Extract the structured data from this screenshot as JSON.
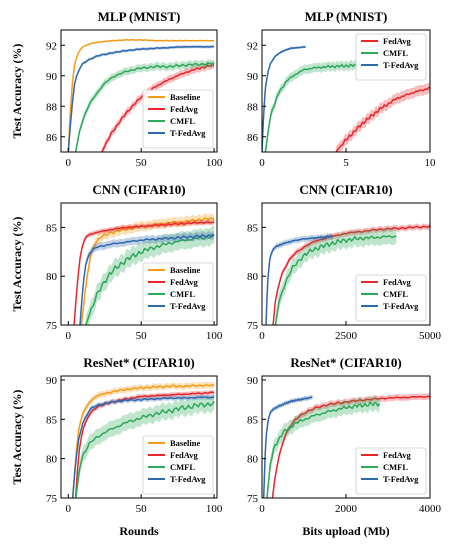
{
  "chart_data": [
    {
      "type": "line",
      "title": "MLP (MNIST)",
      "xlabel": "",
      "ylabel": "Test Accuracy (%)",
      "xlim": [
        -5,
        102
      ],
      "ylim": [
        85,
        93
      ],
      "xticks": [
        0,
        50,
        100
      ],
      "yticks": [
        86,
        88,
        90,
        92
      ],
      "legend": "bottom-right",
      "series": [
        {
          "name": "Baseline",
          "color": "#f39c1a",
          "band": 0.05,
          "x": [
            0,
            2,
            4,
            6,
            8,
            10,
            15,
            20,
            30,
            40,
            50,
            60,
            70,
            80,
            90,
            100
          ],
          "y": [
            85,
            88.8,
            90.6,
            91.3,
            91.7,
            91.9,
            92.1,
            92.2,
            92.3,
            92.35,
            92.35,
            92.3,
            92.3,
            92.3,
            92.3,
            92.3
          ]
        },
        {
          "name": "FedAvg",
          "color": "#e8262a",
          "band": 0.25,
          "x": [
            23,
            30,
            40,
            50,
            60,
            70,
            80,
            90,
            100
          ],
          "y": [
            85,
            86.3,
            87.6,
            88.6,
            89.3,
            89.8,
            90.2,
            90.5,
            90.7
          ]
        },
        {
          "name": "CMFL",
          "color": "#2da85a",
          "band": 0.25,
          "x": [
            5,
            8,
            12,
            16,
            20,
            25,
            30,
            40,
            50,
            60,
            70,
            80,
            90,
            100
          ],
          "y": [
            85,
            86.5,
            87.6,
            88.4,
            88.9,
            89.5,
            89.9,
            90.3,
            90.5,
            90.6,
            90.6,
            90.7,
            90.75,
            90.8
          ]
        },
        {
          "name": "T-FedAvg",
          "color": "#2e68ad",
          "band": 0.1,
          "x": [
            0,
            2,
            4,
            6,
            8,
            10,
            15,
            20,
            30,
            40,
            50,
            60,
            70,
            80,
            90,
            100
          ],
          "y": [
            85,
            87.5,
            89.3,
            90.1,
            90.5,
            90.8,
            91.1,
            91.3,
            91.5,
            91.65,
            91.75,
            91.8,
            91.85,
            91.9,
            91.9,
            91.9
          ]
        }
      ]
    },
    {
      "type": "line",
      "title": "MLP (MNIST)",
      "xlabel": "",
      "ylabel": "",
      "xlim": [
        0,
        10
      ],
      "ylim": [
        85,
        93
      ],
      "xticks": [
        0,
        5,
        10
      ],
      "yticks": [
        86,
        88,
        90,
        92
      ],
      "legend": "top-right",
      "series": [
        {
          "name": "FedAvg",
          "color": "#e8262a",
          "band": 0.35,
          "x": [
            4.4,
            5,
            6,
            7,
            8,
            9,
            10
          ],
          "y": [
            85,
            85.8,
            86.9,
            87.8,
            88.5,
            88.9,
            89.2
          ]
        },
        {
          "name": "CMFL",
          "color": "#2da85a",
          "band": 0.3,
          "x": [
            0.2,
            0.5,
            1,
            1.5,
            2,
            2.5,
            3,
            4,
            5,
            6
          ],
          "y": [
            85,
            87.4,
            88.9,
            89.7,
            90.1,
            90.4,
            90.5,
            90.6,
            90.65,
            90.7
          ]
        },
        {
          "name": "T-FedAvg",
          "color": "#2e68ad",
          "band": 0.08,
          "x": [
            0,
            0.1,
            0.2,
            0.35,
            0.5,
            0.8,
            1.2,
            1.7,
            2.2,
            2.6
          ],
          "y": [
            85,
            87.5,
            89.2,
            90.2,
            90.8,
            91.3,
            91.6,
            91.8,
            91.85,
            91.9
          ]
        }
      ]
    },
    {
      "type": "line",
      "title": "CNN (CIFAR10)",
      "xlabel": "",
      "ylabel": "Test Accuracy (%)",
      "xlim": [
        -5,
        102
      ],
      "ylim": [
        75,
        87.5
      ],
      "xticks": [
        0,
        50,
        100
      ],
      "yticks": [
        75,
        80,
        85
      ],
      "legend": "bottom-right",
      "series": [
        {
          "name": "Baseline",
          "color": "#f39c1a",
          "band": 0.5,
          "x": [
            9,
            12,
            15,
            18,
            22,
            30,
            40,
            50,
            60,
            70,
            80,
            90,
            100
          ],
          "y": [
            75,
            79,
            82,
            83.3,
            84,
            84.5,
            84.8,
            85.1,
            85.3,
            85.5,
            85.6,
            85.8,
            85.9
          ]
        },
        {
          "name": "FedAvg",
          "color": "#e8262a",
          "band": 0.25,
          "x": [
            4,
            6,
            8,
            10,
            12,
            15,
            20,
            30,
            40,
            50,
            60,
            70,
            80,
            90,
            100
          ],
          "y": [
            75,
            79,
            81.8,
            83.3,
            84,
            84.3,
            84.5,
            84.8,
            85,
            85.1,
            85.2,
            85.3,
            85.4,
            85.5,
            85.5
          ]
        },
        {
          "name": "CMFL",
          "color": "#2da85a",
          "band": 0.9,
          "x": [
            12,
            15,
            20,
            25,
            30,
            40,
            50,
            60,
            70,
            80,
            90,
            100
          ],
          "y": [
            75,
            76.3,
            78.2,
            79.5,
            80.5,
            81.7,
            82.5,
            83,
            83.4,
            83.7,
            83.9,
            84.1
          ]
        },
        {
          "name": "T-FedAvg",
          "color": "#2e68ad",
          "band": 0.4,
          "x": [
            8,
            10,
            12,
            15,
            20,
            30,
            40,
            50,
            60,
            70,
            80,
            90,
            100
          ],
          "y": [
            75,
            79,
            81.3,
            82.5,
            83,
            83.3,
            83.5,
            83.7,
            83.8,
            83.9,
            84,
            84.1,
            84.2
          ]
        }
      ]
    },
    {
      "type": "line",
      "title": "CNN (CIFAR10)",
      "xlabel": "",
      "ylabel": "",
      "xlim": [
        0,
        5000
      ],
      "ylim": [
        75,
        87.5
      ],
      "xticks": [
        0,
        2500,
        5000
      ],
      "yticks": [
        75,
        80,
        85
      ],
      "legend": "bottom-right",
      "series": [
        {
          "name": "FedAvg",
          "color": "#e8262a",
          "band": 0.3,
          "x": [
            330,
            400,
            500,
            600,
            800,
            1000,
            1300,
            1600,
            2000,
            2500,
            3000,
            3500,
            4000,
            4500,
            5000
          ],
          "y": [
            75,
            77.5,
            79.2,
            80.3,
            81.6,
            82.4,
            83.1,
            83.6,
            84,
            84.4,
            84.6,
            84.8,
            84.9,
            85,
            85.1
          ]
        },
        {
          "name": "CMFL",
          "color": "#2da85a",
          "band": 0.8,
          "x": [
            400,
            500,
            700,
            900,
            1200,
            1500,
            2000,
            2500,
            3000,
            3500,
            4000
          ],
          "y": [
            75,
            77.3,
            79.4,
            80.8,
            82,
            82.7,
            83.3,
            83.7,
            83.9,
            84,
            84.1
          ]
        },
        {
          "name": "T-FedAvg",
          "color": "#2e68ad",
          "band": 0.3,
          "x": [
            120,
            160,
            220,
            300,
            400,
            600,
            900,
            1200,
            1500,
            1800,
            2100
          ],
          "y": [
            75,
            79,
            81.5,
            82.6,
            83,
            83.3,
            83.6,
            83.8,
            83.9,
            84,
            84.1
          ]
        }
      ]
    },
    {
      "type": "line",
      "title": "ResNet* (CIFAR10)",
      "xlabel": "Rounds",
      "ylabel": "Test Accuracy (%)",
      "xlim": [
        -5,
        102
      ],
      "ylim": [
        75,
        90.5
      ],
      "xticks": [
        0,
        50,
        100
      ],
      "yticks": [
        75,
        80,
        85,
        90
      ],
      "legend": "bottom-right",
      "series": [
        {
          "name": "Baseline",
          "color": "#f39c1a",
          "band": 0.4,
          "x": [
            3,
            5,
            7,
            10,
            15,
            20,
            30,
            40,
            50,
            60,
            70,
            80,
            90,
            100
          ],
          "y": [
            75,
            80,
            83.5,
            85.8,
            87.3,
            88,
            88.5,
            88.8,
            89,
            89.1,
            89.2,
            89.2,
            89.3,
            89.3
          ]
        },
        {
          "name": "FedAvg",
          "color": "#e8262a",
          "band": 0.3,
          "x": [
            5,
            7,
            10,
            15,
            20,
            30,
            40,
            50,
            60,
            70,
            80,
            90,
            100
          ],
          "y": [
            75,
            80.5,
            83.8,
            85.8,
            86.6,
            87.2,
            87.6,
            87.9,
            88,
            88.1,
            88.2,
            88.3,
            88.4
          ]
        },
        {
          "name": "CMFL",
          "color": "#2da85a",
          "band": 1.0,
          "x": [
            5,
            8,
            10,
            15,
            20,
            30,
            40,
            50,
            60,
            70,
            80,
            90,
            100
          ],
          "y": [
            75,
            79,
            80.5,
            82,
            82.8,
            83.8,
            84.6,
            85.2,
            85.7,
            86.1,
            86.5,
            86.8,
            87
          ]
        },
        {
          "name": "T-FedAvg",
          "color": "#2e68ad",
          "band": 0.3,
          "x": [
            3,
            5,
            7,
            10,
            15,
            20,
            30,
            40,
            50,
            60,
            70,
            80,
            90,
            100
          ],
          "y": [
            75,
            79.5,
            82.3,
            84.6,
            86.3,
            86.8,
            87.2,
            87.4,
            87.5,
            87.6,
            87.7,
            87.7,
            87.8,
            87.8
          ]
        }
      ]
    },
    {
      "type": "line",
      "title": "ResNet* (CIFAR10)",
      "xlabel": "Bits upload (Mb)",
      "ylabel": "",
      "xlim": [
        0,
        4000
      ],
      "ylim": [
        75,
        90.5
      ],
      "xticks": [
        0,
        2000,
        4000
      ],
      "yticks": [
        75,
        80,
        85,
        90
      ],
      "legend": "bottom-right",
      "series": [
        {
          "name": "FedAvg",
          "color": "#e8262a",
          "band": 0.4,
          "x": [
            250,
            300,
            400,
            500,
            600,
            800,
            1000,
            1300,
            1600,
            2000,
            2500,
            3000,
            3500,
            4000
          ],
          "y": [
            75,
            77.3,
            80.2,
            82.2,
            83.5,
            85,
            85.8,
            86.5,
            86.9,
            87.2,
            87.5,
            87.7,
            87.8,
            87.9
          ]
        },
        {
          "name": "CMFL",
          "color": "#2da85a",
          "band": 0.9,
          "x": [
            120,
            200,
            300,
            500,
            800,
            1200,
            1600,
            2000,
            2400,
            2800
          ],
          "y": [
            75,
            79.5,
            81.6,
            83.3,
            84.5,
            85.4,
            86,
            86.5,
            86.8,
            87
          ]
        },
        {
          "name": "T-FedAvg",
          "color": "#2e68ad",
          "band": 0.3,
          "x": [
            40,
            70,
            100,
            150,
            200,
            300,
            500,
            700,
            900,
            1100,
            1200
          ],
          "y": [
            75,
            80,
            83,
            85,
            85.9,
            86.4,
            86.9,
            87.3,
            87.5,
            87.7,
            87.8
          ]
        }
      ]
    }
  ]
}
